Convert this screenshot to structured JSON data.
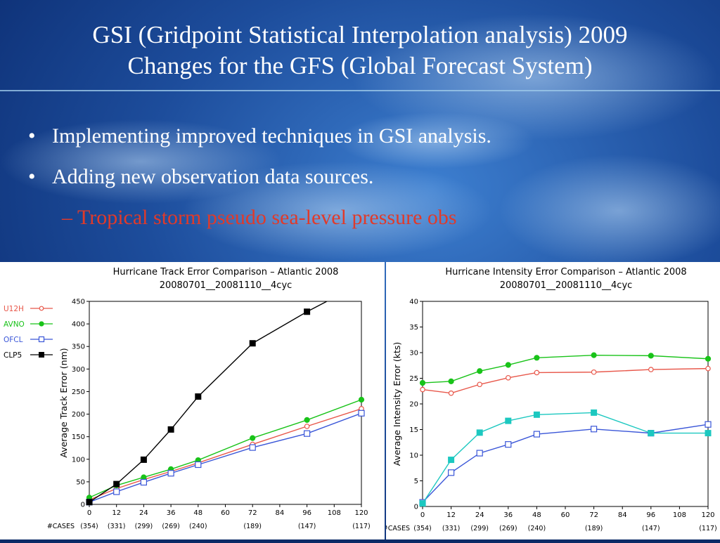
{
  "slide": {
    "title_line1": "GSI (Gridpoint Statistical Interpolation analysis) 2009",
    "title_line2": "Changes for the GFS (Global Forecast System)",
    "bullets": [
      "Implementing improved techniques in GSI analysis.",
      "Adding new observation data sources."
    ],
    "sub_bullet": "– Tropical storm pseudo sea-level pressure obs",
    "colors": {
      "title": "#ffffff",
      "sub_bullet": "#e03a2a"
    }
  },
  "chart_data": [
    {
      "type": "line",
      "title": "Hurricane Track Error Comparison – Atlantic 2008",
      "subtitle": "20080701__20081110__4cyc",
      "ylabel": "Average Track Error (nm)",
      "xlabel": "",
      "x": [
        0,
        12,
        24,
        36,
        48,
        60,
        72,
        84,
        96,
        108,
        120
      ],
      "xlim": [
        0,
        120
      ],
      "ylim": [
        0,
        450
      ],
      "yticks": [
        0,
        50,
        100,
        150,
        200,
        250,
        300,
        350,
        400,
        450
      ],
      "cases_label": "#CASES",
      "cases": [
        "(354)",
        "(331)",
        "(299)",
        "(269)",
        "(240)",
        "",
        "(189)",
        "",
        "(147)",
        "",
        "(117)"
      ],
      "legend_placement": "left",
      "series": [
        {
          "name": "U12H",
          "color": "#e8574a",
          "marker": "open-circle",
          "x": [
            0,
            12,
            24,
            36,
            48,
            72,
            96,
            120
          ],
          "values": [
            10,
            35,
            55,
            73,
            92,
            133,
            173,
            212
          ]
        },
        {
          "name": "AVNO",
          "color": "#19c319",
          "marker": "filled-circle",
          "x": [
            0,
            12,
            24,
            36,
            48,
            72,
            96,
            120
          ],
          "values": [
            15,
            42,
            60,
            78,
            98,
            147,
            187,
            232
          ]
        },
        {
          "name": "OFCL",
          "color": "#3a56d8",
          "marker": "open-square",
          "x": [
            0,
            12,
            24,
            36,
            48,
            72,
            96,
            120
          ],
          "values": [
            5,
            28,
            49,
            69,
            88,
            126,
            157,
            202
          ]
        },
        {
          "name": "CLP5",
          "color": "#000000",
          "marker": "filled-square",
          "x": [
            0,
            12,
            24,
            36,
            48,
            72,
            96,
            120
          ],
          "values": [
            5,
            45,
            99,
            166,
            239,
            357,
            427,
            490
          ]
        }
      ]
    },
    {
      "type": "line",
      "title": "Hurricane Intensity Error Comparison – Atlantic 2008",
      "subtitle": "20080701__20081110__4cyc",
      "ylabel": "Average Intensity Error (kts)",
      "xlabel": "",
      "x": [
        0,
        12,
        24,
        36,
        48,
        60,
        72,
        84,
        96,
        108,
        120
      ],
      "xlim": [
        0,
        120
      ],
      "ylim": [
        0,
        40
      ],
      "yticks": [
        0,
        5,
        10,
        15,
        20,
        25,
        30,
        35,
        40
      ],
      "cases_label": "#CASES",
      "cases": [
        "(354)",
        "(331)",
        "(299)",
        "(269)",
        "(240)",
        "",
        "(189)",
        "",
        "(147)",
        "",
        "(117)"
      ],
      "series": [
        {
          "color": "#e8574a",
          "marker": "open-circle",
          "x": [
            0,
            12,
            24,
            36,
            48,
            72,
            96,
            120
          ],
          "values": [
            22.8,
            22.1,
            23.8,
            25.1,
            26.1,
            26.2,
            26.7,
            26.9
          ]
        },
        {
          "color": "#19c319",
          "marker": "filled-circle",
          "x": [
            0,
            12,
            24,
            36,
            48,
            72,
            96,
            120
          ],
          "values": [
            24.1,
            24.4,
            26.4,
            27.6,
            29.0,
            29.5,
            29.4,
            28.8
          ]
        },
        {
          "color": "#3a56d8",
          "marker": "open-square",
          "x": [
            0,
            12,
            24,
            36,
            48,
            72,
            96,
            120
          ],
          "values": [
            0.8,
            6.6,
            10.4,
            12.1,
            14.1,
            15.1,
            14.3,
            16.0
          ]
        },
        {
          "color": "#1cc8c0",
          "marker": "filled-square",
          "x": [
            0,
            12,
            24,
            36,
            48,
            72,
            96,
            120
          ],
          "values": [
            0.6,
            9.1,
            14.4,
            16.7,
            17.9,
            18.3,
            14.3,
            14.3
          ]
        }
      ]
    }
  ]
}
